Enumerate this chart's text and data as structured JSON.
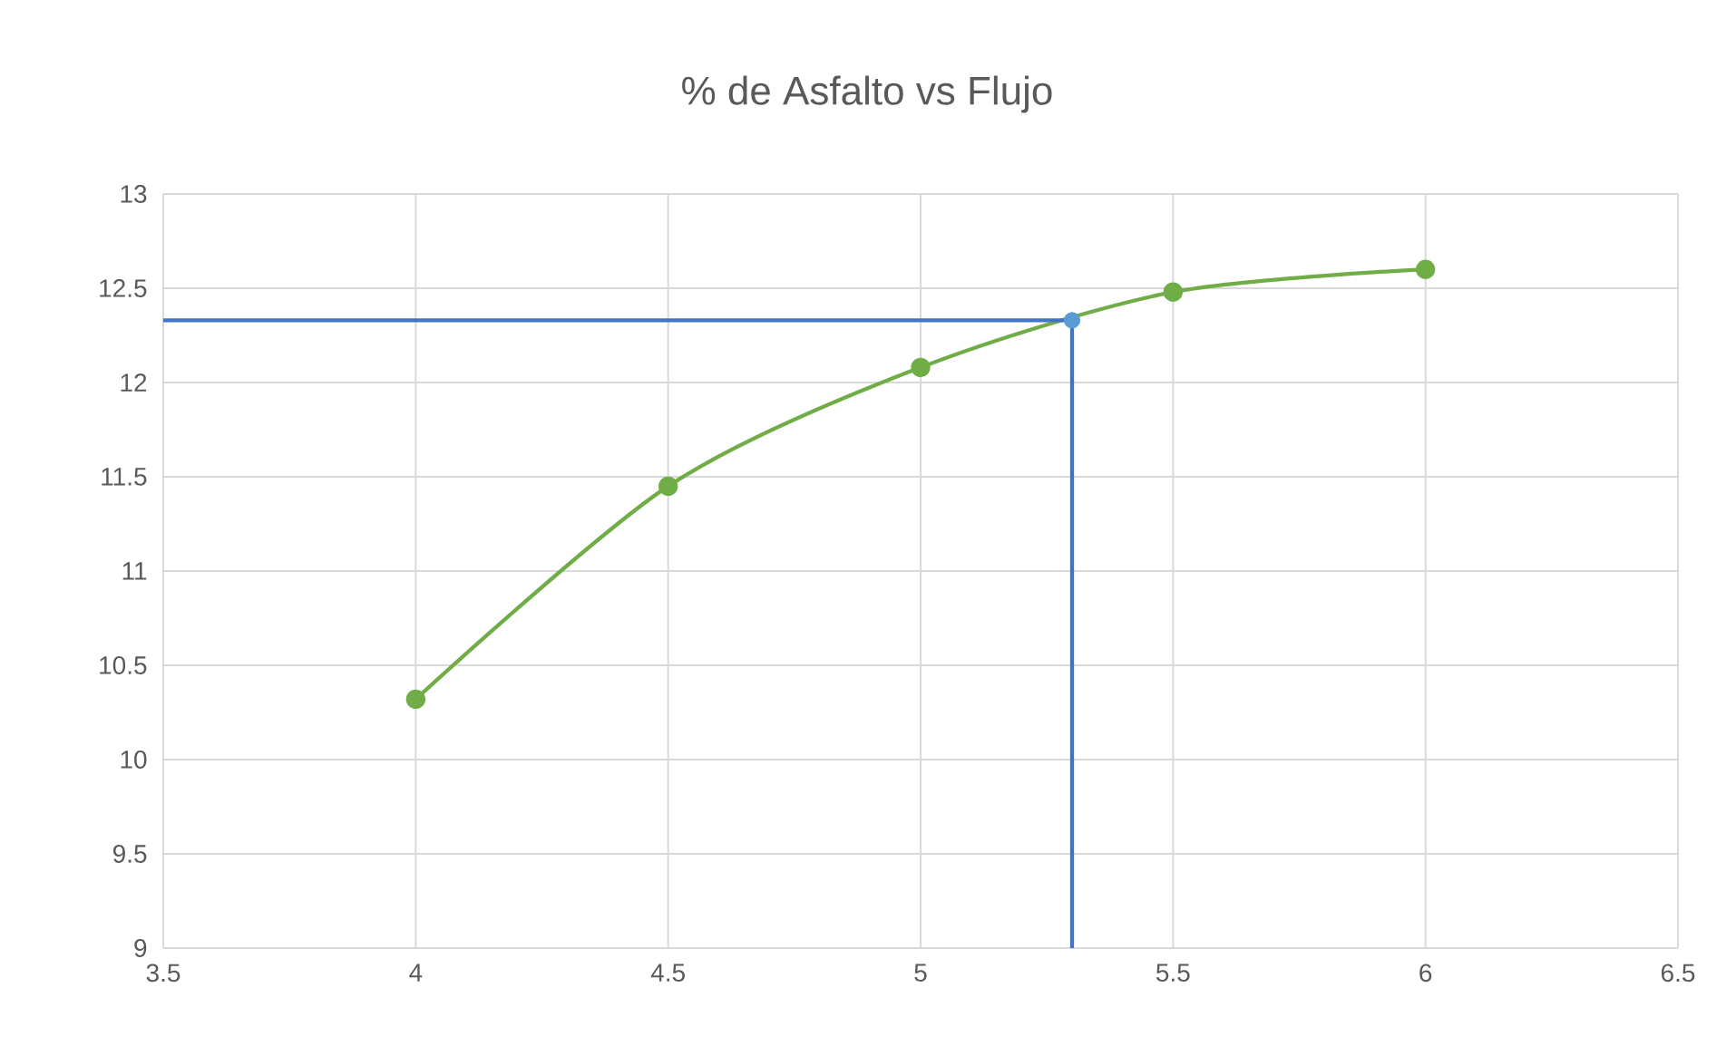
{
  "chart_data": {
    "type": "line",
    "title": "% de Asfalto vs Flujo",
    "xlim": [
      3.5,
      6.5
    ],
    "xticks": [
      3.5,
      4,
      4.5,
      5,
      5.5,
      6,
      6.5
    ],
    "ylim": [
      9,
      13
    ],
    "yticks": [
      9,
      9.5,
      10,
      10.5,
      11,
      11.5,
      12,
      12.5,
      13
    ],
    "grid": true,
    "series": [
      {
        "x": [
          4,
          4.5,
          5,
          5.5,
          6
        ],
        "values": [
          10.32,
          11.45,
          12.08,
          12.48,
          12.6
        ],
        "color": "#70ad47",
        "marker": "circle"
      },
      {
        "type": "line",
        "x": [
          3.5,
          5.3,
          5.3
        ],
        "values": [
          12.33,
          12.33,
          9
        ],
        "color": "#4472c4",
        "marker": "none"
      },
      {
        "type": "scatter",
        "x": [
          5.3
        ],
        "values": [
          12.33
        ],
        "color": "#5b9bd5",
        "marker": "circle"
      }
    ]
  }
}
